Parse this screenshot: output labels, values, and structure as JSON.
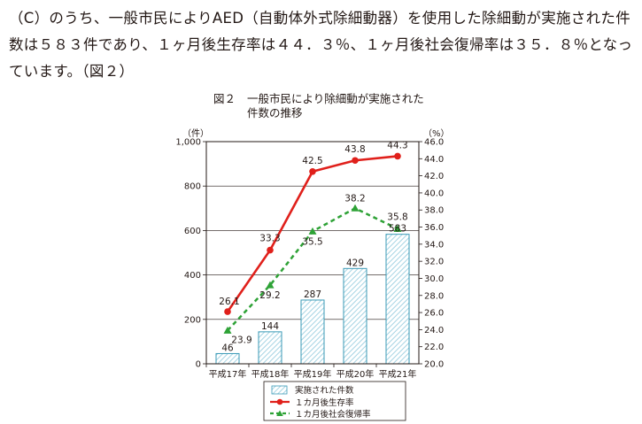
{
  "text": {
    "line1": "（C）のうち、一般市民によりAED（自動体外式除細動器）を使用した除細動が実施された件",
    "line2": "数は５８３件であり、１ヶ月後生存率は４４．３％、１ヶ月後社会復帰率は３５．８％となっ",
    "line3": "ています。（図２）"
  },
  "figure": {
    "number": "図２",
    "title_line1": "一般市民により除細動が実施された",
    "title_line2": "件数の推移"
  },
  "colors": {
    "bar_stroke": "#3a9ab6",
    "bar_hatch": "#8fc9dc",
    "survival": "#e0201b",
    "social": "#2ea236",
    "axis": "#231815"
  },
  "chart_data": {
    "type": "bar",
    "categories": [
      "平成17年",
      "平成18年",
      "平成19年",
      "平成20年",
      "平成21年"
    ],
    "left_axis": {
      "unit": "（件）",
      "ylim": [
        0,
        1000
      ],
      "ticks": [
        "0",
        "200",
        "400",
        "600",
        "800",
        "1,000"
      ]
    },
    "right_axis": {
      "unit": "（%）",
      "ylim": [
        20.0,
        46.0
      ],
      "ticks": [
        "20.0",
        "22.0",
        "24.0",
        "26.0",
        "28.0",
        "30.0",
        "32.0",
        "34.0",
        "36.0",
        "38.0",
        "40.0",
        "42.0",
        "44.0",
        "46.0"
      ]
    },
    "series": [
      {
        "name": "実施された件数",
        "kind": "bar",
        "axis": "left",
        "values": [
          46,
          144,
          287,
          429,
          583
        ],
        "labels": [
          "46",
          "144",
          "287",
          "429",
          "583"
        ]
      },
      {
        "name": "１カ月後生存率",
        "kind": "line",
        "axis": "right",
        "values": [
          26.1,
          33.3,
          42.5,
          43.8,
          44.3
        ],
        "labels": [
          "26.1",
          "33.3",
          "42.5",
          "43.8",
          "44.3"
        ]
      },
      {
        "name": "１カ月後社会復帰率",
        "kind": "dashed-line",
        "axis": "right",
        "values": [
          23.9,
          29.2,
          35.5,
          38.2,
          35.8
        ],
        "labels": [
          "23.9",
          "29.2",
          "35.5",
          "38.2",
          "35.8"
        ]
      }
    ],
    "grid": true,
    "legend": "bottom"
  }
}
